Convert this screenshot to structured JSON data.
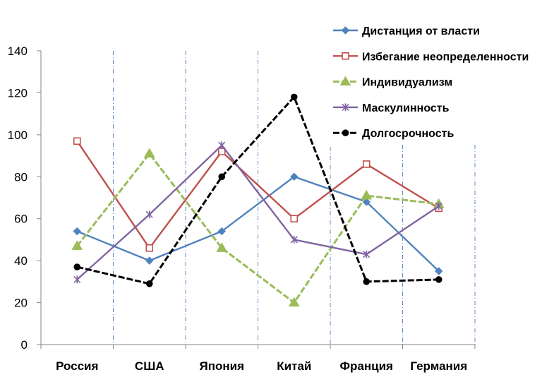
{
  "chart_data": {
    "type": "line",
    "categories": [
      "Россия",
      "США",
      "Япония",
      "Китай",
      "Франция",
      "Германия"
    ],
    "ylim": [
      0,
      140
    ],
    "yticks": [
      0,
      20,
      40,
      60,
      80,
      100,
      120,
      140
    ],
    "grid": "vertical dashed category separators",
    "legend_position": "top-right",
    "series": [
      {
        "name": "Дистанция от власти",
        "values": [
          54,
          40,
          54,
          80,
          68,
          35
        ],
        "color": "#4f81bd",
        "marker": "diamond",
        "dash": false
      },
      {
        "name": "Избегание неопределенности",
        "values": [
          97,
          46,
          92,
          60,
          86,
          65
        ],
        "color": "#c0504d",
        "marker": "square-open",
        "dash": false
      },
      {
        "name": "Индивидуализм",
        "values": [
          47,
          91,
          46,
          20,
          71,
          67
        ],
        "color": "#9bbb59",
        "marker": "triangle",
        "dash": true
      },
      {
        "name": "Маскулинность",
        "values": [
          31,
          62,
          95,
          50,
          43,
          66
        ],
        "color": "#8064a2",
        "marker": "star",
        "dash": false
      },
      {
        "name": "Долгосрочность",
        "values": [
          37,
          29,
          80,
          118,
          30,
          31
        ],
        "color": "#000000",
        "marker": "circle",
        "dash": true
      }
    ]
  }
}
